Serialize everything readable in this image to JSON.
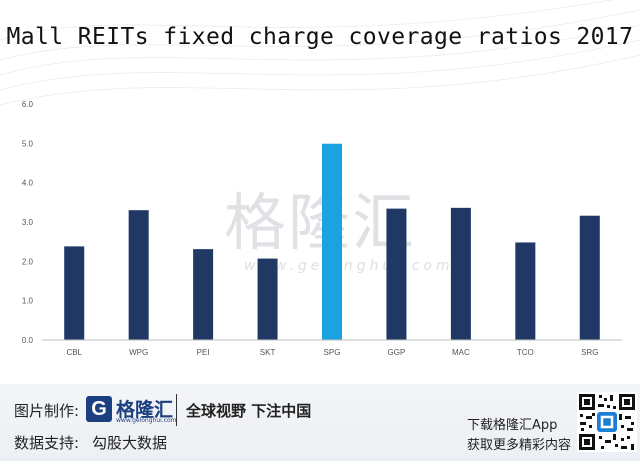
{
  "chart_data": {
    "type": "bar",
    "title": "Mall REITs fixed charge coverage ratios 2017",
    "categories": [
      "CBL",
      "WPG",
      "PEI",
      "SKT",
      "SPG",
      "GGP",
      "MAC",
      "TCO",
      "SRG"
    ],
    "values": [
      2.38,
      3.3,
      2.31,
      2.07,
      4.99,
      3.34,
      3.36,
      2.48,
      3.16
    ],
    "highlight_index": 4,
    "colors": {
      "bar": "#1f3864",
      "highlight": "#1aa3e0",
      "axis_text": "#555555",
      "baseline": "#bfbfbf"
    },
    "ylim": [
      0,
      6
    ],
    "yticks": [
      "0.0",
      "1.0",
      "2.0",
      "3.0",
      "4.0",
      "5.0",
      "6.0"
    ],
    "grid": false,
    "legend": "none"
  },
  "watermark": {
    "brand_cn": "格隆汇",
    "site": "www.gelonghui.com"
  },
  "footer": {
    "made_by": "图片制作:",
    "logo_letter": "G",
    "logo_brand": "格隆汇",
    "logo_site": "www.gelonghui.com",
    "slogan": "全球视野 下注中国",
    "data_support": "数据支持:",
    "data_source": "勾股大数据",
    "download": "下载格隆汇App",
    "more": "获取更多精彩内容"
  }
}
